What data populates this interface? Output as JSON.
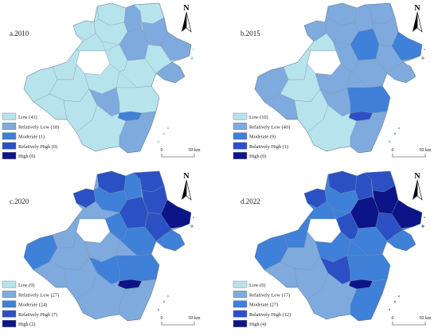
{
  "figure": {
    "panels": [
      {
        "label": "a.2010",
        "legend": [
          "Low (41)",
          "Relatively Low (18)",
          "Moderate (1)",
          "Relatively High (0)",
          "High (0)"
        ],
        "region_levels": [
          0,
          1,
          0,
          1,
          1,
          0,
          0,
          1,
          0,
          0,
          1,
          0,
          0,
          0,
          0,
          0,
          0,
          0,
          0,
          1,
          0,
          2,
          0,
          1
        ]
      },
      {
        "label": "b.2015",
        "legend": [
          "Low (10)",
          "Relatively Low (40)",
          "Moderate (9)",
          "Relatively High (1)",
          "High (0)"
        ],
        "region_levels": [
          1,
          1,
          1,
          1,
          2,
          1,
          1,
          2,
          0,
          1,
          1,
          1,
          0,
          0,
          1,
          1,
          1,
          1,
          0,
          1,
          2,
          3,
          0,
          1
        ]
      },
      {
        "label": "c.2020",
        "legend": [
          "Low (0)",
          "Relatively Low (27)",
          "Moderate (24)",
          "Relatively High (7)",
          "High (2)"
        ],
        "region_levels": [
          3,
          2,
          3,
          3,
          4,
          3,
          2,
          3,
          1,
          3,
          2,
          2,
          1,
          1,
          1,
          2,
          2,
          1,
          1,
          2,
          2,
          4,
          1,
          1
        ]
      },
      {
        "label": "d.2022",
        "legend": [
          "Low (0)",
          "Relatively Low (17)",
          "Moderate (27)",
          "Relatively High (12)",
          "High (4)"
        ],
        "region_levels": [
          3,
          3,
          3,
          4,
          4,
          3,
          2,
          4,
          2,
          3,
          2,
          2,
          2,
          1,
          2,
          3,
          2,
          1,
          1,
          3,
          2,
          4,
          1,
          2
        ]
      }
    ]
  },
  "class_colors": [
    "#b7e3ec",
    "#7eaade",
    "#3f80d8",
    "#2b50c4",
    "#0c1488"
  ],
  "north_arrow": {
    "label": "N"
  },
  "scale_bar": {
    "start": "0",
    "end": "50 km"
  }
}
